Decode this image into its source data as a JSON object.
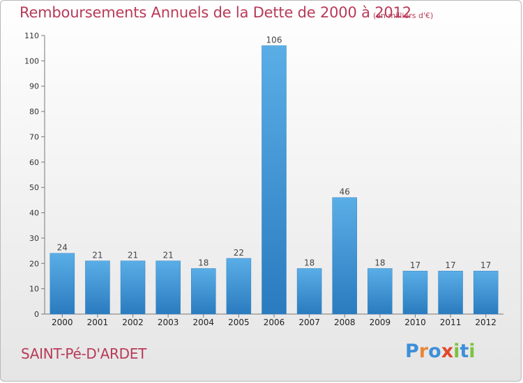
{
  "header": {
    "title": "Remboursements Annuels de la Dette de 2000 à 2012",
    "unit": "(en milliers d'€)"
  },
  "footer": {
    "commune": "SAINT-Pé-D'ARDET",
    "logo": [
      "P",
      "r",
      "o",
      "x",
      "i",
      "t",
      "i"
    ]
  },
  "colors": {
    "title": "#b83a57",
    "bar_top": "#5aaee6",
    "bar_bottom": "#2a7bbf",
    "logo_letters": [
      "#3f8fd8",
      "#e8873a",
      "#3f8fd8",
      "#e2462e",
      "#7cc242",
      "#3f8fd8",
      "#7cc242"
    ]
  },
  "chart_data": {
    "type": "bar",
    "categories": [
      "2000",
      "2001",
      "2002",
      "2003",
      "2004",
      "2005",
      "2006",
      "2007",
      "2008",
      "2009",
      "2010",
      "2011",
      "2012"
    ],
    "values": [
      24,
      21,
      21,
      21,
      18,
      22,
      106,
      18,
      46,
      18,
      17,
      17,
      17
    ],
    "title": "Remboursements Annuels de la Dette de 2000 à 2012",
    "subtitle": "(en milliers d'€)",
    "xlabel": "",
    "ylabel": "",
    "ylim": [
      0,
      110
    ],
    "yticks": [
      0,
      10,
      20,
      30,
      40,
      50,
      60,
      70,
      80,
      90,
      100,
      110
    ],
    "grid": false,
    "data_labels": true
  }
}
